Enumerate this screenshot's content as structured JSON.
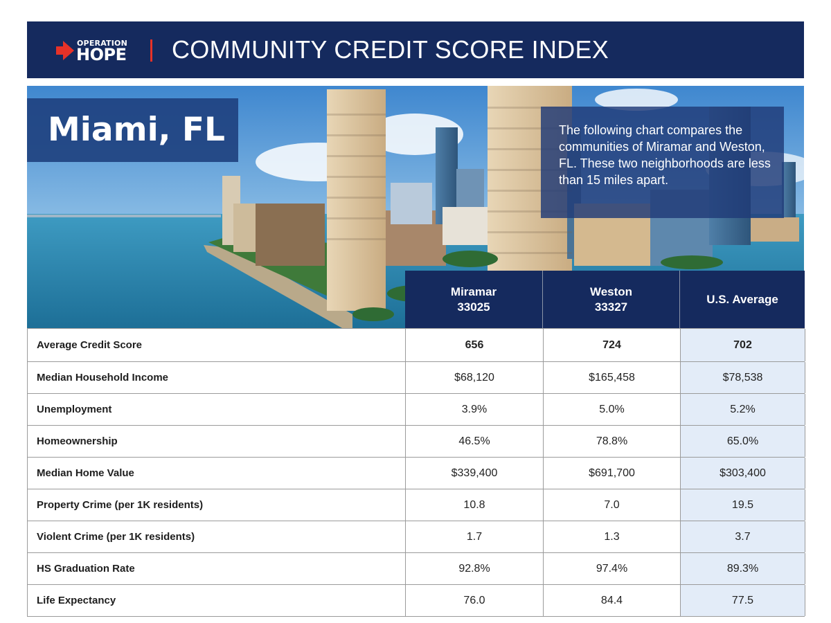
{
  "colors": {
    "navy": "#152a5e",
    "accent_red": "#e63228",
    "us_avg_column": "#e3ecf8"
  },
  "header": {
    "logo_top": "OPERATION",
    "logo_bottom": "HOPE",
    "title": "COMMUNITY CREDIT SCORE INDEX"
  },
  "hero": {
    "city": "Miami, FL",
    "description": "The following chart compares the communities of Miramar and Weston, FL. These two neighborhoods are less than 15 miles apart."
  },
  "table": {
    "columns": [
      {
        "line1": "Miramar",
        "line2": "33025"
      },
      {
        "line1": "Weston",
        "line2": "33327"
      },
      {
        "line1": "U.S. Average",
        "line2": ""
      }
    ],
    "rows": [
      {
        "label": "Average Credit Score",
        "values": [
          "656",
          "724",
          "702"
        ]
      },
      {
        "label": "Median Household Income",
        "values": [
          "$68,120",
          "$165,458",
          "$78,538"
        ]
      },
      {
        "label": "Unemployment",
        "values": [
          "3.9%",
          "5.0%",
          "5.2%"
        ]
      },
      {
        "label": "Homeownership",
        "values": [
          "46.5%",
          "78.8%",
          "65.0%"
        ]
      },
      {
        "label": "Median Home Value",
        "values": [
          "$339,400",
          "$691,700",
          "$303,400"
        ]
      },
      {
        "label": "Property Crime (per 1K residents)",
        "values": [
          "10.8",
          "7.0",
          "19.5"
        ]
      },
      {
        "label": "Violent Crime (per 1K residents)",
        "values": [
          "1.7",
          "1.3",
          "3.7"
        ]
      },
      {
        "label": "HS Graduation Rate",
        "values": [
          "92.8%",
          "97.4%",
          "89.3%"
        ]
      },
      {
        "label": "Life Expectancy",
        "values": [
          "76.0",
          "84.4",
          "77.5"
        ]
      }
    ]
  }
}
